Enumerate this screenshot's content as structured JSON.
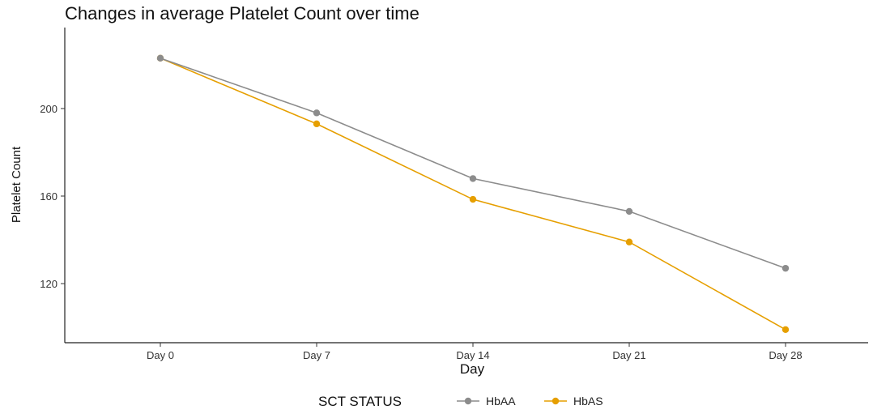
{
  "chart_data": {
    "type": "line",
    "title": "Changes in average Platelet Count over time",
    "xlabel": "Day",
    "ylabel": "Platelet Count",
    "categories": [
      "Day 0",
      "Day 7",
      "Day 14",
      "Day 21",
      "Day 28"
    ],
    "yticks": [
      120,
      160,
      200
    ],
    "ylim": [
      93,
      237
    ],
    "grid": false,
    "legend": {
      "title": "SCT STATUS",
      "position": "bottom"
    },
    "series": [
      {
        "name": "HbAA",
        "color": "#8c8c8c",
        "values": [
          223,
          198,
          168,
          153,
          127
        ]
      },
      {
        "name": "HbAS",
        "color": "#e69f00",
        "values": [
          223,
          193,
          158.5,
          139,
          99
        ]
      }
    ]
  }
}
